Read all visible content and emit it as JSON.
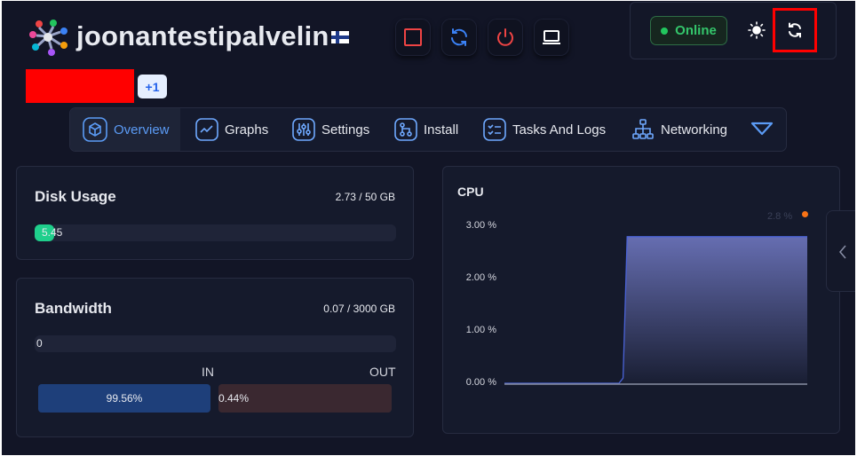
{
  "header": {
    "server_name": "joonantestipalvelin",
    "flag": "fi-flag-icon",
    "power_buttons": [
      "stop-icon",
      "restart-icon",
      "power-icon",
      "console-icon"
    ],
    "status": "Online",
    "extra_count": "+1"
  },
  "tabs": [
    {
      "label": "Overview",
      "icon": "cube-icon",
      "active": true
    },
    {
      "label": "Graphs",
      "icon": "graph-icon"
    },
    {
      "label": "Settings",
      "icon": "sliders-icon"
    },
    {
      "label": "Install",
      "icon": "install-icon"
    },
    {
      "label": "Tasks And Logs",
      "icon": "checklist-icon"
    },
    {
      "label": "Networking",
      "icon": "network-icon"
    }
  ],
  "disk": {
    "title": "Disk Usage",
    "value": "2.73 / 50 GB",
    "bar_label": "5.45",
    "percent": 5.45
  },
  "bandwidth": {
    "title": "Bandwidth",
    "value": "0.07 / 3000 GB",
    "bar_label": "0",
    "in_label": "IN",
    "out_label": "OUT",
    "in_pct": "99.56%",
    "out_pct": "0.44%",
    "in_fraction": 0.9956
  },
  "cpu": {
    "title": "CPU",
    "current": "2.8 %",
    "colors": {
      "line": "#4a63d8",
      "dot": "#f97316"
    }
  },
  "chart_data": {
    "type": "area",
    "title": "CPU",
    "y_ticks": [
      "3.00 %",
      "2.00 %",
      "1.00 %",
      "0.00 %"
    ],
    "ylim": [
      0,
      3
    ],
    "series": [
      {
        "name": "CPU",
        "values": [
          0,
          0,
          0,
          0,
          0,
          0,
          0,
          0,
          0,
          0,
          0,
          0,
          0,
          0,
          0,
          0,
          0,
          0,
          0,
          0,
          0,
          0,
          0,
          0,
          0,
          0,
          0,
          0,
          0,
          0.1,
          2.8,
          2.8,
          2.8,
          2.8,
          2.8,
          2.8,
          2.8,
          2.8,
          2.8,
          2.8,
          2.8,
          2.8,
          2.8,
          2.8,
          2.8,
          2.8,
          2.8,
          2.8,
          2.8,
          2.8,
          2.8,
          2.8,
          2.8,
          2.8,
          2.8,
          2.8,
          2.8,
          2.8,
          2.8,
          2.8,
          2.8,
          2.8,
          2.8,
          2.8,
          2.8,
          2.8,
          2.8,
          2.8,
          2.8,
          2.8,
          2.8,
          2.8,
          2.8,
          2.8,
          2.8
        ]
      }
    ]
  }
}
